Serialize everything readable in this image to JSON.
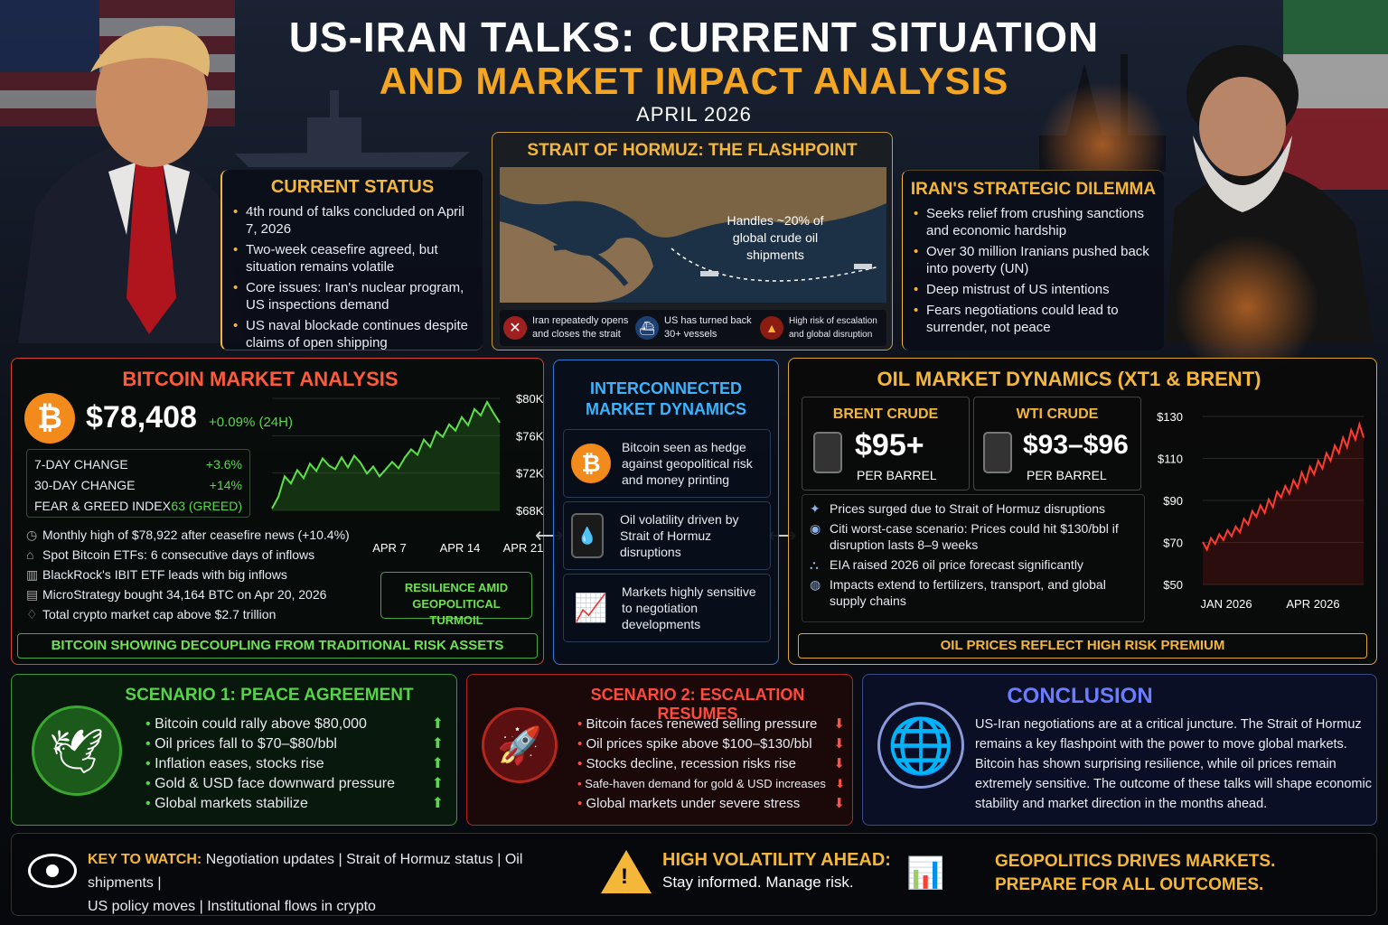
{
  "header": {
    "line1": "US-IRAN TALKS: CURRENT SITUATION",
    "line2": "AND MARKET IMPACT ANALYSIS",
    "date": "APRIL 2026"
  },
  "current_status": {
    "title": "CURRENT STATUS",
    "items": [
      "4th round of talks concluded on April 7, 2026",
      "Two-week ceasefire agreed, but situation remains volatile",
      "Core issues: Iran's nuclear program, US inspections demand",
      "US naval blockade continues despite claims of open shipping"
    ]
  },
  "hormuz": {
    "title": "STRAIT OF HORMUZ: THE FLASHPOINT",
    "map_label": "Handles ~20% of global crude oil shipments",
    "notes": [
      "Iran repeatedly opens and closes the strait",
      "US has turned back 30+ vessels",
      "High risk of escalation and global disruption"
    ]
  },
  "iran": {
    "title": "IRAN'S STRATEGIC DILEMMA",
    "items": [
      "Seeks relief from crushing sanctions and economic hardship",
      "Over 30 million Iranians pushed back into poverty (UN)",
      "Deep mistrust of US intentions",
      "Fears negotiations could lead to surrender, not peace"
    ]
  },
  "bitcoin": {
    "title": "BITCOIN MARKET ANALYSIS",
    "price": "$78,408",
    "change": "+0.09% (24H)",
    "stats": [
      {
        "label": "7-DAY CHANGE",
        "value": "+3.6%"
      },
      {
        "label": "30-DAY CHANGE",
        "value": "+14%"
      },
      {
        "label": "FEAR & GREED INDEX",
        "value": "63 (GREED)"
      }
    ],
    "notes": [
      "Monthly high of $78,922 after ceasefire news (+10.4%)",
      "Spot Bitcoin ETFs: 6 consecutive days of inflows",
      "BlackRock's IBIT ETF leads with big inflows",
      "MicroStrategy bought 34,164 BTC on Apr 20, 2026",
      "Total crypto market cap above $2.7 trillion"
    ],
    "badge": "RESILIENCE AMID GEOPOLITICAL TURMOIL",
    "footer": "BITCOIN SHOWING DECOUPLING FROM TRADITIONAL RISK ASSETS"
  },
  "inter": {
    "title": "INTERCONNECTED MARKET DYNAMICS",
    "items": [
      "Bitcoin seen as hedge against geopolitical risk and money printing",
      "Oil volatility driven by Strait of Hormuz disruptions",
      "Markets highly sensitive to negotiation developments"
    ]
  },
  "oil": {
    "title": "OIL MARKET DYNAMICS (XT1 & BRENT)",
    "brent": {
      "name": "BRENT CRUDE",
      "price": "$95+",
      "unit": "PER BARREL"
    },
    "wti": {
      "name": "WTI CRUDE",
      "price": "$93–$96",
      "unit": "PER BARREL"
    },
    "notes": [
      "Prices surged due to Strait of Hormuz disruptions",
      "Citi worst-case scenario: Prices could hit $130/bbl if disruption lasts 8–9 weeks",
      "EIA raised 2026 oil price forecast significantly",
      "Impacts extend to fertilizers, transport, and global supply chains"
    ],
    "footer": "OIL PRICES REFLECT HIGH RISK PREMIUM"
  },
  "s1": {
    "title": "SCENARIO 1: PEACE AGREEMENT",
    "items": [
      "Bitcoin could rally above $80,000",
      "Oil prices fall to $70–$80/bbl",
      "Inflation eases, stocks rise",
      "Gold & USD face downward pressure",
      "Global markets stabilize"
    ]
  },
  "s2": {
    "title": "SCENARIO 2: ESCALATION RESUMES",
    "items": [
      "Bitcoin faces renewed selling pressure",
      "Oil prices spike above $100–$130/bbl",
      "Stocks decline, recession risks rise",
      "Safe-haven demand for gold & USD increases",
      "Global markets under severe stress"
    ]
  },
  "conclusion": {
    "title": "CONCLUSION",
    "text": "US-Iran negotiations are at a critical juncture. The Strait of Hormuz remains a key flashpoint with the power to move global markets. Bitcoin has shown surprising resilience, while oil prices remain extremely sensitive. The outcome of these talks will shape economic stability and market direction in the months ahead."
  },
  "footer": {
    "key_label": "KEY TO WATCH:",
    "key_line1": "Negotiation updates | Strait of Hormuz status | Oil shipments |",
    "key_line2": "US policy moves | Institutional flows in crypto",
    "vol_title": "HIGH VOLATILITY AHEAD:",
    "vol_sub": "Stay informed. Manage risk.",
    "geo1": "GEOPOLITICS DRIVES MARKETS.",
    "geo2": "PREPARE FOR ALL OUTCOMES."
  },
  "chart_data": [
    {
      "type": "line",
      "title": "",
      "series": [
        {
          "values": [
            68200,
            69500,
            71800,
            71000,
            72500,
            71600,
            73200,
            72400,
            73800,
            73000,
            72600,
            73900,
            72800,
            74100,
            73300,
            72100,
            72900,
            71800,
            72600,
            73400,
            72700,
            73900,
            74800,
            74200,
            75900,
            75100,
            76800,
            76200,
            77600,
            76900,
            78400,
            77500,
            79300,
            78600,
            80100,
            78900,
            77800
          ]
        }
      ],
      "x_ticks": [
        "APR 7",
        "APR 14",
        "APR 21"
      ],
      "y_ticks": [
        "$80K",
        "$76K",
        "$72K",
        "$68K"
      ],
      "ylim": [
        68000,
        80500
      ]
    },
    {
      "type": "line",
      "title": "",
      "series": [
        {
          "values": [
            70,
            66,
            72,
            69,
            74,
            71,
            76,
            73,
            78,
            75,
            82,
            79,
            86,
            83,
            89,
            85,
            92,
            88,
            96,
            93,
            99,
            95,
            102,
            98,
            106,
            101,
            109,
            105,
            112,
            108,
            116,
            112,
            120,
            116,
            124,
            119,
            128,
            123,
            131,
            124
          ]
        }
      ],
      "x_ticks": [
        "JAN 2026",
        "APR 2026"
      ],
      "y_ticks": [
        "$130",
        "$110",
        "$90",
        "$70",
        "$50"
      ],
      "ylim": [
        48,
        135
      ]
    }
  ]
}
